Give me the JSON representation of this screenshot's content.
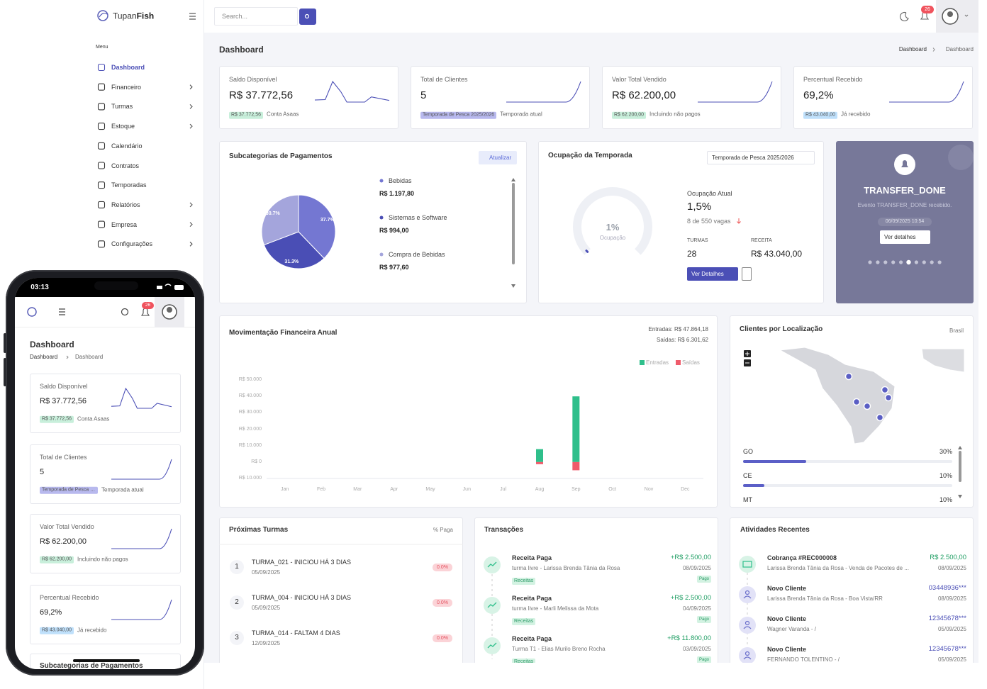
{
  "brand": {
    "name": "Tupan",
    "bold": "Fish"
  },
  "search": "Search...",
  "notifications": "26",
  "menu": {
    "title": "Menu",
    "items": [
      {
        "label": "Dashboard",
        "active": true,
        "submenu": false
      },
      {
        "label": "Financeiro",
        "submenu": true
      },
      {
        "label": "Turmas",
        "submenu": true
      },
      {
        "label": "Estoque",
        "submenu": true
      },
      {
        "label": "Calendário",
        "submenu": false
      },
      {
        "label": "Contratos",
        "submenu": false
      },
      {
        "label": "Temporadas",
        "submenu": false
      },
      {
        "label": "Relatórios",
        "submenu": true
      },
      {
        "label": "Empresa",
        "submenu": true
      },
      {
        "label": "Configurações",
        "submenu": true
      }
    ]
  },
  "page": {
    "title": "Dashboard",
    "breadcrumb": [
      "Dashboard",
      "Dashboard"
    ]
  },
  "stats": [
    {
      "label": "Saldo Disponível",
      "value": "R$ 37.772,56",
      "badge": "R$ 37.772,56",
      "badge_color": "#c8efdb",
      "note": "Conta Asaas"
    },
    {
      "label": "Total de Clientes",
      "value": "5",
      "badge": "Temporada de Pesca 2025/2026",
      "badge_color": "#b8b9ee",
      "note": "Temporada atual"
    },
    {
      "label": "Valor Total Vendido",
      "value": "R$ 62.200,00",
      "badge": "R$ 62.200,00",
      "badge_color": "#c8efdb",
      "note": "Incluindo não pagos"
    },
    {
      "label": "Percentual Recebido",
      "value": "69,2%",
      "badge": "R$ 43.040,00",
      "badge_color": "#bfe0fb",
      "note": "Já recebido"
    }
  ],
  "chart_data": [
    {
      "type": "pie",
      "title": "Subcategorias de Pagamentos",
      "categories": [
        "Bebidas",
        "Sistemas e Software",
        "Compra de Bebidas"
      ],
      "values": [
        37.7,
        31.3,
        30.7
      ],
      "value_labels": [
        "37.7%",
        "31.3%",
        "30.7%"
      ],
      "colors": [
        "#7477d2",
        "#4a4eb5",
        "#a4a5dc"
      ]
    },
    {
      "type": "bar",
      "title": "Movimentação Financeira Anual",
      "annotations": [
        "Entradas: R$ 47.864,18",
        "Saídas: R$ 6.301,62"
      ],
      "categories": [
        "Jan",
        "Feb",
        "Mar",
        "Apr",
        "May",
        "Jun",
        "Jul",
        "Aug",
        "Sep",
        "Oct",
        "Nov",
        "Dec"
      ],
      "series": [
        {
          "name": "Entradas",
          "color": "#2fbf8b",
          "values": [
            0,
            0,
            0,
            0,
            0,
            0,
            0,
            7864.18,
            40000,
            0,
            0,
            0
          ]
        },
        {
          "name": "Saídas",
          "color": "#ef5b6b",
          "values": [
            0,
            0,
            0,
            0,
            0,
            0,
            0,
            -1301.62,
            -5000,
            0,
            0,
            0
          ]
        }
      ],
      "ylim": [
        -10000,
        50000
      ],
      "yticks": [
        {
          "value": -10000,
          "label": "R$ 10.000"
        },
        {
          "value": 0,
          "label": "R$ 0"
        },
        {
          "value": 10000,
          "label": "R$ 10.000"
        },
        {
          "value": 20000,
          "label": "R$ 20.000"
        },
        {
          "value": 30000,
          "label": "R$ 30.000"
        },
        {
          "value": 40000,
          "label": "R$ 40.000"
        },
        {
          "value": 50000,
          "label": "R$ 50.000"
        }
      ],
      "grid": false
    }
  ],
  "payments": {
    "button": "Atualizar",
    "amounts": [
      "R$ 1.197,80",
      "R$ 994,00",
      "R$ 977,60"
    ]
  },
  "occupancy": {
    "title": "Ocupação da Temporada",
    "select": "Temporada de Pesca 2025/2026",
    "gauge": {
      "value": 1,
      "label": "1%",
      "caption": "Ocupação"
    },
    "current_label": "Ocupação Atual",
    "current_value": "1,5%",
    "vagas": "8 de 550 vagas",
    "turmas_label": "TURMAS",
    "turmas_value": "28",
    "receita_label": "RECEITA",
    "receita_value": "R$ 43.040,00",
    "button": "Ver Detalhes"
  },
  "event": {
    "title": "TRANSFER_DONE",
    "message": "Evento TRANSFER_DONE recebido.",
    "date": "06/09/2025 10:54",
    "button": "Ver detalhes"
  },
  "locations": {
    "title": "Clientes por Localização",
    "region": "Brasil",
    "rows": [
      {
        "state": "GO",
        "value": 30,
        "label": "30%"
      },
      {
        "state": "CE",
        "value": 10,
        "label": "10%"
      },
      {
        "state": "MT",
        "value": 10,
        "label": "10%"
      }
    ]
  },
  "turmas": {
    "title": "Próximas Turmas",
    "column": "% Paga",
    "items": [
      {
        "n": "1",
        "name": "TURMA_021 - INICIOU HÁ 3 DIAS",
        "date": "05/09/2025",
        "paid": "0.0%"
      },
      {
        "n": "2",
        "name": "TURMA_004 - INICIOU HÁ 3 DIAS",
        "date": "05/09/2025",
        "paid": "0.0%"
      },
      {
        "n": "3",
        "name": "TURMA_014 - FALTAM 4 DIAS",
        "date": "12/09/2025",
        "paid": "0.0%"
      }
    ]
  },
  "transactions": {
    "title": "Transações",
    "items": [
      {
        "title": "Receita Paga",
        "desc": "turma livre - Larissa Brenda Tânia da Rosa",
        "amount": "+R$ 2.500,00",
        "date": "08/09/2025",
        "tag": "Receitas",
        "status": "Pago"
      },
      {
        "title": "Receita Paga",
        "desc": "turma livre - Marli Melissa da Mota",
        "amount": "+R$ 2.500,00",
        "date": "04/09/2025",
        "tag": "Receitas",
        "status": "Pago"
      },
      {
        "title": "Receita Paga",
        "desc": "Turma T1 - Elias Murilo Breno Rocha",
        "amount": "+R$ 11.800,00",
        "date": "03/09/2025",
        "tag": "Receitas",
        "status": "Pago"
      }
    ]
  },
  "activities": {
    "title": "Atividades Recentes",
    "items": [
      {
        "title": "Cobrança #REC000008",
        "desc": "Larissa Brenda Tânia da Rosa - Venda de Pacotes de ...",
        "amount": "R$ 2.500,00",
        "date": "08/09/2025",
        "kind": "payment"
      },
      {
        "title": "Novo Cliente",
        "desc": "Larissa Brenda Tânia da Rosa - Boa Vista/RR",
        "amount": "03448936***",
        "date": "08/09/2025",
        "kind": "client"
      },
      {
        "title": "Novo Cliente",
        "desc": "Wagner Varanda - /",
        "amount": "12345678***",
        "date": "05/09/2025",
        "kind": "client"
      },
      {
        "title": "Novo Cliente",
        "desc": "FERNANDO TOLENTINO - /",
        "amount": "12345678***",
        "date": "05/09/2025",
        "kind": "client"
      }
    ]
  },
  "phone": {
    "time": "03:13"
  }
}
